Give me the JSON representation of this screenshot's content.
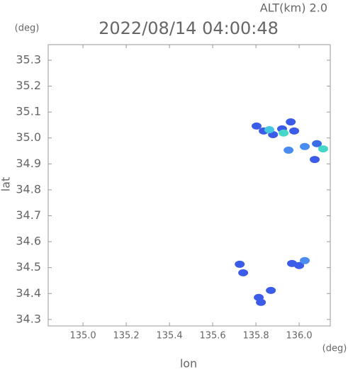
{
  "chart_data": {
    "type": "scatter",
    "title": "2022/08/14 04:00:48",
    "subtitle": "ALT(km) 2.0",
    "x_label": "lon",
    "y_label": "lat",
    "x_unit": "(deg)",
    "y_unit": "(deg)",
    "xlim": [
      134.839,
      136.144
    ],
    "ylim": [
      34.275,
      35.36
    ],
    "xticks": [
      {
        "value": 135,
        "label": "135.0"
      },
      135.2,
      135.4,
      135.6,
      135.8,
      {
        "value": 136,
        "label": "136.0"
      }
    ],
    "yticks": [
      34.3,
      34.4,
      34.5,
      34.6,
      34.7,
      34.8,
      34.9,
      {
        "value": 35,
        "label": "35.0"
      },
      35.1,
      35.2,
      35.3
    ],
    "x": [
      135.803,
      135.836,
      135.879,
      135.921,
      135.961,
      135.977,
      135.928,
      135.862,
      135.951,
      136.082,
      136.111,
      136.072,
      136.026,
      135.725,
      135.741,
      135.967,
      136.0,
      136.026,
      135.869,
      135.813,
      135.823
    ],
    "y": [
      35.046,
      35.027,
      35.013,
      35.035,
      35.062,
      35.027,
      35.019,
      35.032,
      34.953,
      34.978,
      34.958,
      34.917,
      34.967,
      34.513,
      34.48,
      34.516,
      34.508,
      34.527,
      34.412,
      34.385,
      34.366
    ],
    "colors": [
      "#3a5ce8",
      "#3a5ce8",
      "#3a5ce8",
      "#3a5ce8",
      "#3a5ce8",
      "#3a5ce8",
      "#45d8c8",
      "#45c8e0",
      "#4a8cf0",
      "#3a6ce8",
      "#45d8c8",
      "#3a5ce8",
      "#4a8cf0",
      "#3a5ce8",
      "#3a5ce8",
      "#3a5ce8",
      "#3a5ce8",
      "#4a8cf0",
      "#3a5ce8",
      "#3a5ce8",
      "#3a5ce8"
    ]
  }
}
